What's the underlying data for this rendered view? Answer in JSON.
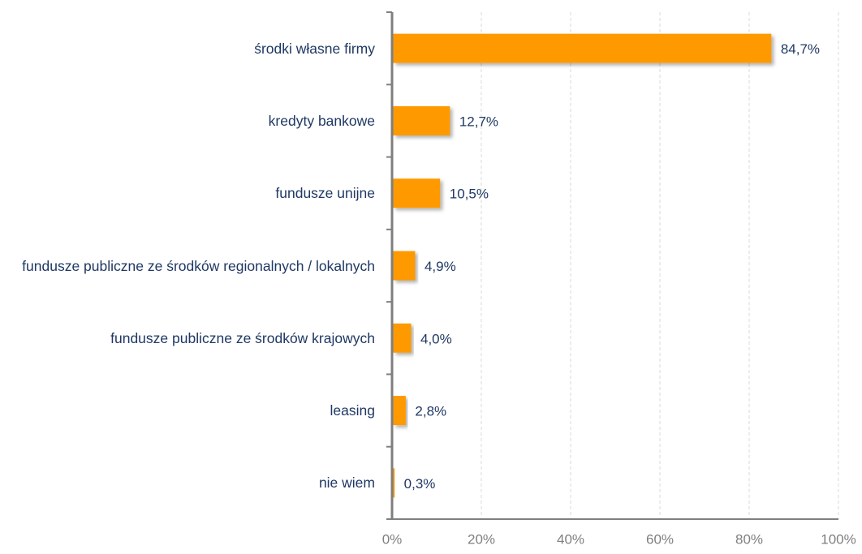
{
  "chart_data": {
    "type": "bar",
    "orientation": "horizontal",
    "categories": [
      "środki własne firmy",
      "kredyty bankowe",
      "fundusze unijne",
      "fundusze publiczne ze środków regionalnych / lokalnych",
      "fundusze publiczne ze środków krajowych",
      "leasing",
      "nie wiem"
    ],
    "values": [
      84.7,
      12.7,
      10.5,
      4.9,
      4.0,
      2.8,
      0.3
    ],
    "value_labels": [
      "84,7%",
      "12,7%",
      "10,5%",
      "4,9%",
      "4,0%",
      "2,8%",
      "0,3%"
    ],
    "color": "#ff9900",
    "xlim": [
      0,
      100
    ],
    "xticks": [
      {
        "value": 0,
        "label": "0%"
      },
      {
        "value": 20,
        "label": "20%"
      },
      {
        "value": 40,
        "label": "40%"
      },
      {
        "value": 60,
        "label": "60%"
      },
      {
        "value": 80,
        "label": "80%"
      },
      {
        "value": 100,
        "label": "100%"
      }
    ],
    "grid": true
  }
}
